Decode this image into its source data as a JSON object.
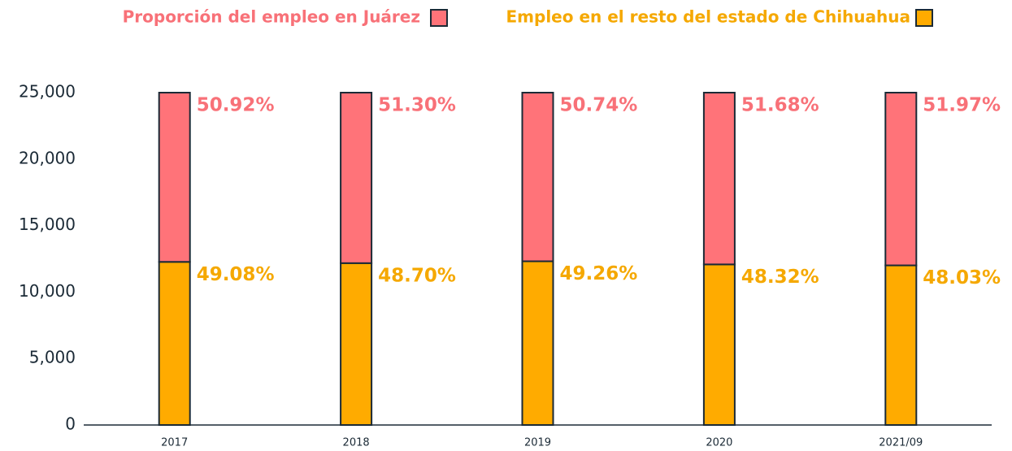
{
  "chart_data": {
    "type": "stacked-bar",
    "categories": [
      "2017",
      "2018",
      "2019",
      "2020",
      "2021/09"
    ],
    "series": [
      {
        "name": "Empleo en el resto del estado de Chihuahua",
        "color": "#ffab00",
        "label_color": "#f5a800",
        "values": [
          12270,
          12175,
          12315,
          12080,
          12007.5
        ],
        "value_labels": [
          "49.08%",
          "48.70%",
          "49.26%",
          "48.32%",
          "48.03%"
        ]
      },
      {
        "name": "Proporción del empleo en Juárez",
        "color": "#ff7379",
        "label_color": "#f87178",
        "values": [
          12730,
          12825,
          12685,
          12920,
          12992.5
        ],
        "value_labels": [
          "50.92%",
          "51.30%",
          "50.74%",
          "51.68%",
          "51.97%"
        ]
      }
    ],
    "ylim": [
      0,
      25000
    ],
    "yticks": [
      0,
      {
        "value": 5000,
        "label": "5,000"
      },
      {
        "value": 10000,
        "label": "10,000"
      },
      {
        "value": 15000,
        "label": "15,000"
      },
      {
        "value": 20000,
        "label": "20,000"
      },
      {
        "value": 25000,
        "label": "25,000"
      }
    ]
  }
}
